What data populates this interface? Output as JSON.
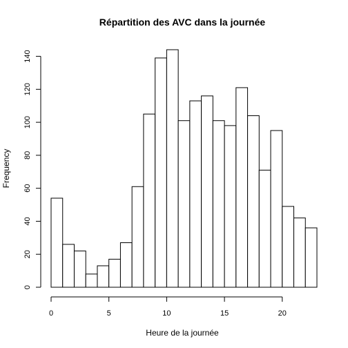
{
  "chart_data": {
    "type": "bar",
    "title": "Répartition des AVC dans la journée",
    "xlabel": "Heure de la journée",
    "ylabel": "Frequency",
    "bin_edges": [
      0,
      1,
      2,
      3,
      4,
      5,
      6,
      7,
      8,
      9,
      10,
      11,
      12,
      13,
      14,
      15,
      16,
      17,
      18,
      19,
      20,
      21,
      22,
      23
    ],
    "values": [
      54,
      26,
      22,
      8,
      13,
      17,
      27,
      61,
      105,
      139,
      144,
      101,
      113,
      116,
      101,
      98,
      121,
      104,
      71,
      95,
      49,
      42,
      36
    ],
    "xlim": [
      0,
      23
    ],
    "ylim": [
      0,
      144
    ],
    "x_ticks": [
      0,
      5,
      10,
      15,
      20
    ],
    "y_ticks": [
      0,
      20,
      40,
      60,
      80,
      100,
      120,
      140
    ],
    "grid": false,
    "legend": "none",
    "colors": {
      "bar_fill": "#ffffff",
      "bar_stroke": "#000000"
    }
  }
}
